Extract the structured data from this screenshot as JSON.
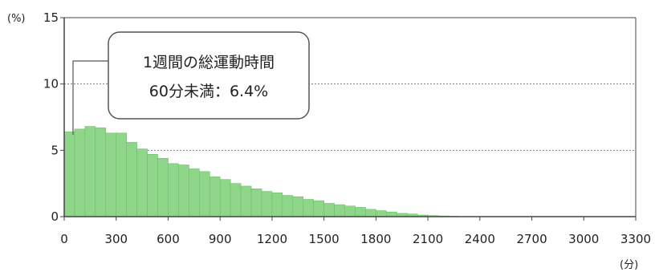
{
  "chart_data": {
    "type": "bar",
    "y_unit_label": "(%)",
    "x_unit_label": "(分)",
    "x_range": [
      0,
      3300
    ],
    "ylim": [
      0,
      15
    ],
    "bin_width": 60,
    "x_ticks": [
      0,
      300,
      600,
      900,
      1200,
      1500,
      1800,
      2100,
      2400,
      2700,
      3000,
      3300
    ],
    "x_tick_labels": [
      "0",
      "300",
      "600",
      "900",
      "1200",
      "1500",
      "1800",
      "2100",
      "2400",
      "2700",
      "3000",
      "3300"
    ],
    "y_ticks": [
      0,
      5,
      10,
      15
    ],
    "y_tick_labels": [
      "0",
      "5",
      "10",
      "15"
    ],
    "bin_starts": [
      0,
      60,
      120,
      180,
      240,
      300,
      360,
      420,
      480,
      540,
      600,
      660,
      720,
      780,
      840,
      900,
      960,
      1020,
      1080,
      1140,
      1200,
      1260,
      1320,
      1380,
      1440,
      1500,
      1560,
      1620,
      1680,
      1740,
      1800,
      1860,
      1920,
      1980,
      2040,
      2100,
      2160,
      2220
    ],
    "values": [
      6.4,
      6.6,
      6.8,
      6.7,
      6.3,
      6.3,
      5.6,
      5.1,
      4.7,
      4.4,
      4.0,
      3.9,
      3.6,
      3.4,
      3.0,
      2.8,
      2.5,
      2.3,
      2.1,
      1.9,
      1.8,
      1.6,
      1.5,
      1.3,
      1.2,
      1.0,
      0.9,
      0.8,
      0.7,
      0.55,
      0.45,
      0.35,
      0.25,
      0.2,
      0.12,
      0.08,
      0.05,
      0.03
    ],
    "gridlines_dashed_at": [
      5,
      10
    ],
    "colors": {
      "bar_fill": "#8fd68b",
      "bar_edge": "#6cbf68",
      "axis": "#444444",
      "grid": "#777777"
    },
    "annotation": {
      "line1": "1週間の総運動時間",
      "line2": "60分未満：6.4%",
      "points_to_bin": 0
    }
  }
}
